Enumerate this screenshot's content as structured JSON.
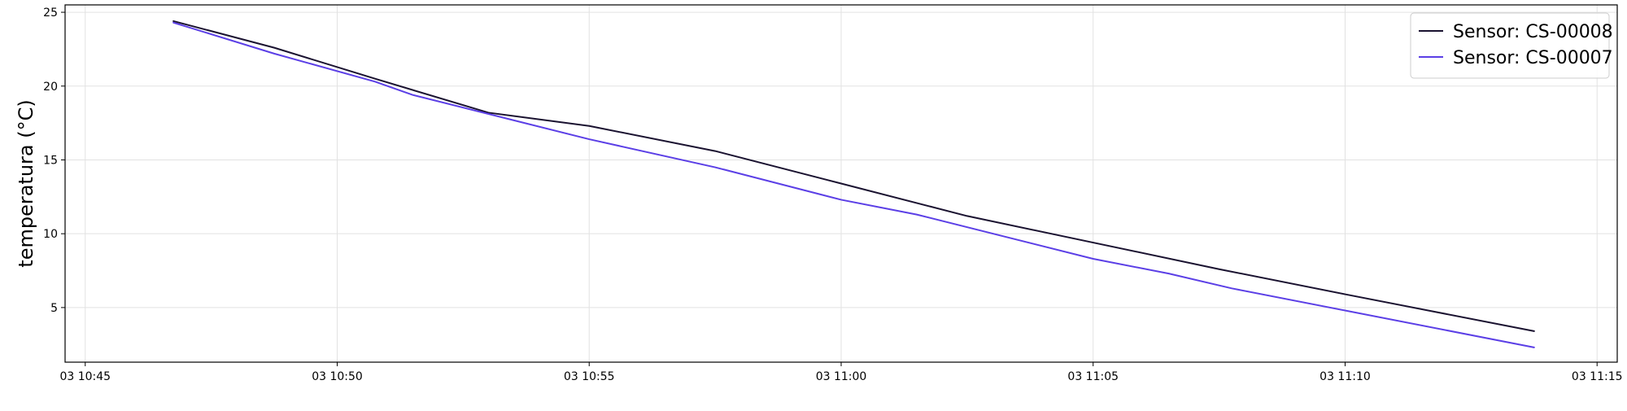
{
  "chart_data": {
    "type": "line",
    "title": "",
    "xlabel": "",
    "ylabel": "temperatura (°C)",
    "x_axis_type": "datetime",
    "xlim": [
      "03 10:44:36",
      "03 11:15:24"
    ],
    "ylim": [
      1.3,
      25.5
    ],
    "x_ticks": [
      {
        "time": "03 10:45",
        "label": "03 10:45"
      },
      {
        "time": "03 10:50",
        "label": "03 10:50"
      },
      {
        "time": "03 10:55",
        "label": "03 10:55"
      },
      {
        "time": "03 11:00",
        "label": "03 11:00"
      },
      {
        "time": "03 11:05",
        "label": "03 11:05"
      },
      {
        "time": "03 11:10",
        "label": "03 11:10"
      },
      {
        "time": "03 11:15",
        "label": "03 11:15"
      }
    ],
    "y_ticks": [
      {
        "value": 5,
        "label": "5"
      },
      {
        "value": 10,
        "label": "10"
      },
      {
        "value": 15,
        "label": "15"
      },
      {
        "value": 20,
        "label": "20"
      },
      {
        "value": 25,
        "label": "25"
      }
    ],
    "grid": true,
    "legend_position": "top-right",
    "series": [
      {
        "name": "Sensor: CS-00008",
        "color": "#1a1230",
        "points": [
          {
            "time": "03 10:46:45",
            "value": 24.4
          },
          {
            "time": "03 10:48:45",
            "value": 22.6
          },
          {
            "time": "03 10:50:45",
            "value": 20.5
          },
          {
            "time": "03 10:53:00",
            "value": 18.2
          },
          {
            "time": "03 10:55:00",
            "value": 17.3
          },
          {
            "time": "03 10:57:30",
            "value": 15.6
          },
          {
            "time": "03 11:00:00",
            "value": 13.4
          },
          {
            "time": "03 11:02:30",
            "value": 11.2
          },
          {
            "time": "03 11:05:00",
            "value": 9.4
          },
          {
            "time": "03 11:07:30",
            "value": 7.6
          },
          {
            "time": "03 11:10:00",
            "value": 5.9
          },
          {
            "time": "03 11:13:45",
            "value": 3.4
          }
        ]
      },
      {
        "name": "Sensor: CS-00007",
        "color": "#5b3fe6",
        "points": [
          {
            "time": "03 10:46:45",
            "value": 24.3
          },
          {
            "time": "03 10:48:45",
            "value": 22.2
          },
          {
            "time": "03 10:50:45",
            "value": 20.3
          },
          {
            "time": "03 10:51:30",
            "value": 19.4
          },
          {
            "time": "03 10:55:00",
            "value": 16.4
          },
          {
            "time": "03 10:57:30",
            "value": 14.5
          },
          {
            "time": "03 11:00:00",
            "value": 12.3
          },
          {
            "time": "03 11:01:30",
            "value": 11.3
          },
          {
            "time": "03 11:05:00",
            "value": 8.3
          },
          {
            "time": "03 11:06:30",
            "value": 7.3
          },
          {
            "time": "03 11:07:45",
            "value": 6.3
          },
          {
            "time": "03 11:10:00",
            "value": 4.8
          },
          {
            "time": "03 11:13:45",
            "value": 2.3
          }
        ]
      }
    ]
  }
}
